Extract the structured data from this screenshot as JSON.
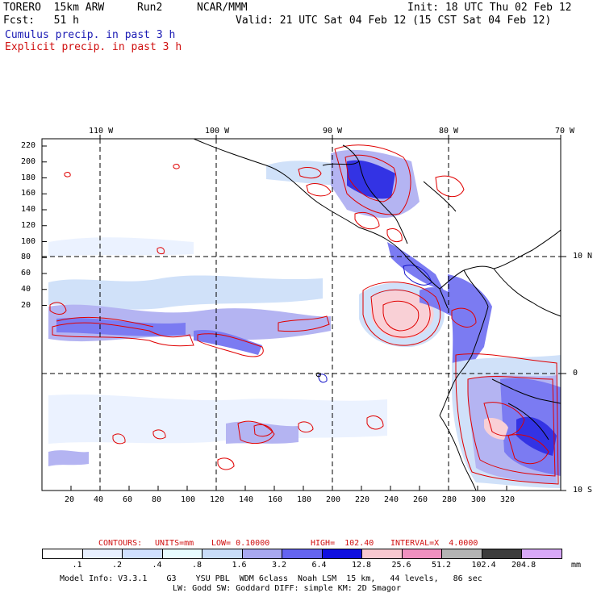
{
  "header": {
    "model": "TORERO  15km ARW",
    "run": "Run2",
    "org": "NCAR/MMM",
    "init": "Init: 18 UTC Thu 02 Feb 12",
    "fcst": "Fcst:   51 h",
    "valid": "Valid: 21 UTC Sat 04 Feb 12 (15 CST Sat 04 Feb 12)",
    "legend_cumulus": "Cumulus precip. in past 3 h",
    "legend_explicit": "Explicit precip. in past 3 h"
  },
  "map": {
    "lon_labels": [
      "110 W",
      "100 W",
      "90 W",
      "80 W",
      "70 W"
    ],
    "lat_labels": [
      "10 N",
      "0",
      "10 S"
    ],
    "y_ticks": [
      "220",
      "200",
      "180",
      "160",
      "140",
      "120",
      "100",
      "80",
      "60",
      "40",
      "20"
    ],
    "x_ticks": [
      "20",
      "40",
      "60",
      "80",
      "100",
      "120",
      "140",
      "160",
      "180",
      "200",
      "220",
      "240",
      "260",
      "280",
      "300",
      "320"
    ]
  },
  "contours": {
    "label": "CONTOURS:",
    "units": "UNITS=mm",
    "low": "LOW= 0.10000",
    "high": "HIGH=  102.40",
    "interval": "INTERVAL=X  4.0000"
  },
  "colorbar": {
    "values": [
      ".1",
      ".2",
      ".4",
      ".8",
      "1.6",
      "3.2",
      "6.4",
      "12.8",
      "25.6",
      "51.2",
      "102.4",
      "204.8"
    ],
    "unit": "mm",
    "colors": [
      "#ffffff",
      "#e8f0ff",
      "#d0e0ff",
      "#e8fcff",
      "#c8dcf8",
      "#a8a8f0",
      "#6464f0",
      "#1010e0",
      "#f8c8d0",
      "#f090c0",
      "#b4b4b4",
      "#3c3c3c",
      "#d8a8f8"
    ]
  },
  "footer": {
    "line1": "Model Info: V3.3.1    G3    YSU PBL  WDM 6class  Noah LSM  15 km,   44 levels,   86 sec",
    "line2": "LW: Godd SW: Goddard DIFF: simple KM: 2D Smagor"
  }
}
